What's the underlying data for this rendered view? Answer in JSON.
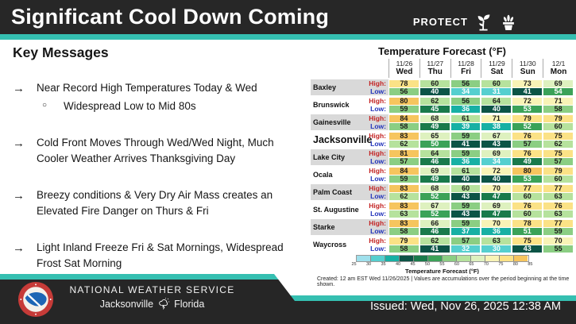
{
  "header": {
    "title": "Significant Cool Down Coming",
    "protect_label": "PROTECT"
  },
  "key_messages": {
    "heading": "Key Messages",
    "bullets": [
      {
        "text": "Near Record High Temperatures Today & Wed",
        "sub": [
          "Widespread Low to Mid 80s"
        ]
      },
      {
        "text": "Cold Front Moves Through Wed/Wed Night, Much Cooler Weather Arrives Thanksgiving Day",
        "sub": []
      },
      {
        "text": "Breezy conditions & Very Dry Air Mass creates an Elevated Fire Danger on Thurs & Fri",
        "sub": []
      },
      {
        "text": "Light Inland Freeze Fri & Sat Mornings, Widespread Frost Sat Morning",
        "sub": []
      }
    ]
  },
  "forecast_table": {
    "title": "Temperature Forecast (°F)",
    "high_label": "High:",
    "low_label": "Low:",
    "dates": [
      "11/26",
      "11/27",
      "11/28",
      "11/29",
      "11/30",
      "12/1"
    ],
    "days": [
      "Wed",
      "Thu",
      "Fri",
      "Sat",
      "Sun",
      "Mon"
    ]
  },
  "chart_data": {
    "type": "heatmap",
    "title": "Temperature Forecast (°F)",
    "columns": [
      "11/26 Wed",
      "11/27 Thu",
      "11/28 Fri",
      "11/29 Sat",
      "11/30 Sun",
      "12/1 Mon"
    ],
    "rows": [
      {
        "city": "Baxley",
        "high": [
          78,
          60,
          56,
          60,
          73,
          69
        ],
        "low": [
          56,
          40,
          34,
          31,
          41,
          54
        ]
      },
      {
        "city": "Brunswick",
        "high": [
          80,
          62,
          56,
          64,
          72,
          71
        ],
        "low": [
          59,
          45,
          36,
          40,
          53,
          58
        ]
      },
      {
        "city": "Gainesville",
        "high": [
          84,
          68,
          61,
          71,
          79,
          79
        ],
        "low": [
          58,
          49,
          39,
          38,
          52,
          60
        ]
      },
      {
        "city": "Jacksonville",
        "high": [
          83,
          65,
          59,
          67,
          76,
          75
        ],
        "low": [
          62,
          50,
          41,
          43,
          57,
          62
        ]
      },
      {
        "city": "Lake City",
        "high": [
          81,
          64,
          59,
          69,
          76,
          75
        ],
        "low": [
          57,
          46,
          36,
          34,
          49,
          57
        ]
      },
      {
        "city": "Ocala",
        "high": [
          84,
          69,
          61,
          72,
          80,
          79
        ],
        "low": [
          59,
          49,
          40,
          40,
          53,
          60
        ]
      },
      {
        "city": "Palm Coast",
        "high": [
          83,
          68,
          60,
          70,
          77,
          77
        ],
        "low": [
          62,
          52,
          43,
          47,
          60,
          63
        ]
      },
      {
        "city": "St. Augustine",
        "high": [
          83,
          67,
          59,
          69,
          76,
          76
        ],
        "low": [
          63,
          52,
          43,
          47,
          60,
          63
        ]
      },
      {
        "city": "Starke",
        "high": [
          83,
          66,
          59,
          70,
          78,
          77
        ],
        "low": [
          58,
          46,
          37,
          36,
          51,
          59
        ]
      },
      {
        "city": "Waycross",
        "high": [
          79,
          62,
          57,
          63,
          75,
          70
        ],
        "low": [
          58,
          41,
          32,
          30,
          43,
          55
        ]
      }
    ],
    "colorscale": {
      "min": 25,
      "max": 85,
      "step": 5,
      "unit": "°F"
    }
  },
  "colorbar": {
    "label": "Temperature Forecast (°F)",
    "ticks": [
      "25",
      "30",
      "35",
      "40",
      "45",
      "50",
      "55",
      "60",
      "65",
      "70",
      "75",
      "80",
      "85"
    ],
    "colors": [
      "#9fe0ec",
      "#55cfcf",
      "#17b0a4",
      "#0c5446",
      "#197a4b",
      "#3ba258",
      "#8bce83",
      "#b6e29d",
      "#def1bf",
      "#f8f3b6",
      "#fbe286",
      "#f6c55e"
    ]
  },
  "created_note": "Created: 12 am EST Wed 11/26/2025 | Values are accumulations over the period beginning at the time shown.",
  "footer": {
    "agency": "NATIONAL WEATHER SERVICE",
    "office": "Jacksonville",
    "state": "Florida",
    "issued": "Issued: Wed, Nov 26, 2025 12:38 AM"
  },
  "colors": {
    "accent_teal": "#35bfb1",
    "header_bg": "#272727",
    "high_label": "#cc2222",
    "low_label": "#2233bb"
  }
}
